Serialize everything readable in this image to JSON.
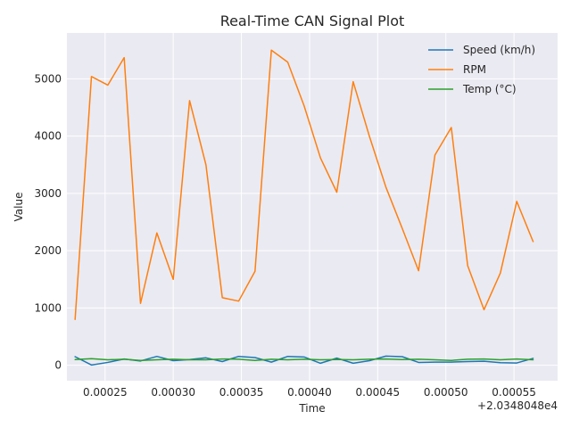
{
  "chart_data": {
    "type": "line",
    "title": "Real-Time CAN Signal Plot",
    "xlabel": "Time",
    "ylabel": "Value",
    "x_offset_label": "+2.0348048e4",
    "xlim": [
      0.000222,
      0.000582
    ],
    "ylim": [
      -270,
      5800
    ],
    "x_ticks": [
      0.00025,
      0.0003,
      0.00035,
      0.0004,
      0.00045,
      0.0005,
      0.00055
    ],
    "x_tick_labels": [
      "0.00025",
      "0.00030",
      "0.00035",
      "0.00040",
      "0.00045",
      "0.00050",
      "0.00055"
    ],
    "y_ticks": [
      0,
      1000,
      2000,
      3000,
      4000,
      5000
    ],
    "y_tick_labels": [
      "0",
      "1000",
      "2000",
      "3000",
      "4000",
      "5000"
    ],
    "grid": true,
    "legend_position": "top-right",
    "x": [
      0.000228,
      0.00024,
      0.000252,
      0.000264,
      0.000276,
      0.000288,
      0.0003,
      0.000312,
      0.000324,
      0.000336,
      0.000348,
      0.00036,
      0.000372,
      0.000384,
      0.000396,
      0.000408,
      0.00042,
      0.000432,
      0.000444,
      0.000456,
      0.000468,
      0.00048,
      0.000492,
      0.000504,
      0.000516,
      0.000528,
      0.00054,
      0.000552,
      0.000564
    ],
    "series": [
      {
        "name": "Speed (km/h)",
        "color": "#1f77b4",
        "values": [
          150,
          5,
          50,
          110,
          75,
          155,
          80,
          100,
          130,
          65,
          155,
          135,
          55,
          155,
          145,
          35,
          125,
          35,
          80,
          160,
          150,
          50,
          55,
          55,
          65,
          70,
          45,
          40,
          120
        ]
      },
      {
        "name": "RPM",
        "color": "#ff7f0e",
        "values": [
          800,
          5040,
          4890,
          5370,
          1080,
          2310,
          1500,
          4620,
          3500,
          1180,
          1120,
          1640,
          5500,
          5290,
          4530,
          3620,
          3020,
          4950,
          3990,
          3110,
          2390,
          1650,
          3670,
          4150,
          1740,
          970,
          1610,
          2860,
          2160
        ]
      },
      {
        "name": "Temp (°C)",
        "color": "#2ca02c",
        "values": [
          100,
          115,
          95,
          105,
          85,
          95,
          105,
          95,
          95,
          110,
          105,
          85,
          105,
          95,
          105,
          95,
          100,
          95,
          105,
          110,
          100,
          105,
          95,
          85,
          105,
          110,
          95,
          110,
          95
        ]
      }
    ]
  }
}
